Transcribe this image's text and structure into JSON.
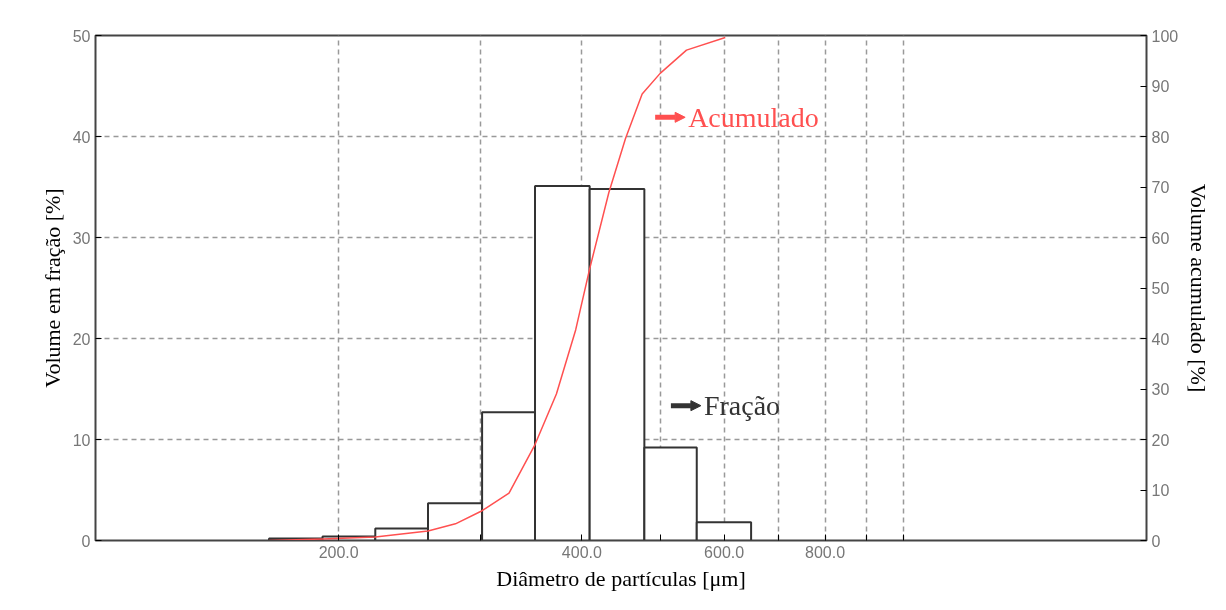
{
  "chart_data": {
    "type": "histogram",
    "xlabel": "Diâmetro de partículas [μm]",
    "ylabel": "Volume em fração [%]",
    "y2label": "Volume acumulado [%]",
    "log": "x",
    "xlim": [
      100,
      2000
    ],
    "xticks": [
      {
        "value": 200,
        "label": "200.0"
      },
      {
        "value": 300,
        "label": null
      },
      {
        "value": 400,
        "label": "400.0"
      },
      {
        "value": 500,
        "label": null
      },
      {
        "value": 600,
        "label": "600.0"
      },
      {
        "value": 700,
        "label": null
      },
      {
        "value": 800,
        "label": "800.0"
      },
      {
        "value": 900,
        "label": null
      },
      {
        "value": 1000,
        "label": null
      }
    ],
    "ylim": [
      0,
      50
    ],
    "yticks": [
      0,
      10,
      20,
      30,
      40,
      50
    ],
    "y2lim": [
      0,
      100
    ],
    "y2ticks": [
      0,
      10,
      20,
      30,
      40,
      50,
      60,
      70,
      80,
      90,
      100
    ],
    "grid": true,
    "legend": "right",
    "series": [
      {
        "name": "Fração",
        "color": "#333333",
        "bins": [
          164,
          191,
          222,
          258,
          301,
          350,
          409,
          478,
          555,
          648
        ],
        "values": [
          0.2,
          0.4,
          1.2,
          3.7,
          12.7,
          35.1,
          34.8,
          9.2,
          1.8
        ]
      },
      {
        "name": "Acumulado",
        "type": "line",
        "axis": "y2",
        "color": "#ff5050",
        "x": [
          164,
          191,
          222,
          258,
          279,
          301,
          325,
          350,
          372,
          393,
          409,
          432,
          453,
          475,
          500,
          539,
          602
        ],
        "values": [
          0,
          0.3,
          0.7,
          1.9,
          3.3,
          5.9,
          9.4,
          19,
          29,
          41.7,
          53.8,
          68.9,
          79.6,
          88.4,
          92.5,
          97.1,
          99.6
        ]
      }
    ]
  }
}
